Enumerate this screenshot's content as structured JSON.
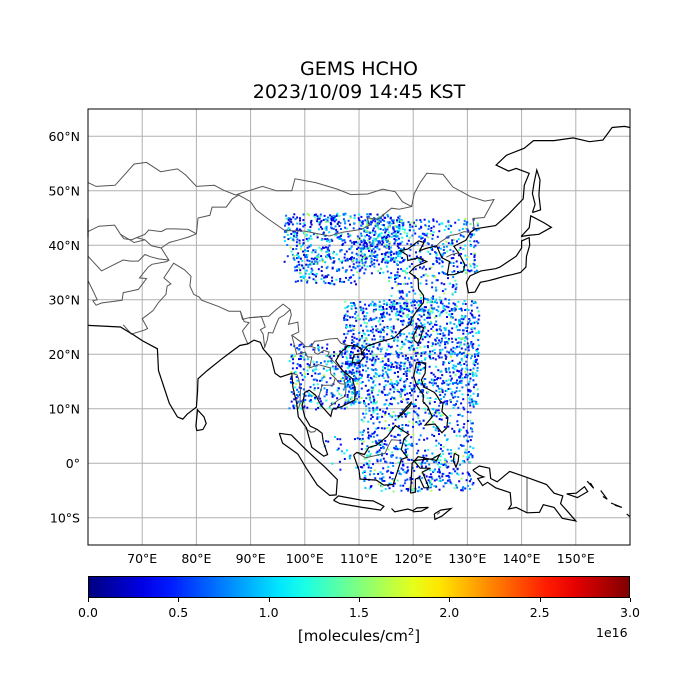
{
  "title": {
    "line1": "GEMS HCHO",
    "line2": "2023/10/09 14:45 KST"
  },
  "map": {
    "lon_range": [
      60,
      160
    ],
    "lat_range": [
      -15,
      65
    ],
    "lon_ticks": [
      "70°E",
      "80°E",
      "90°E",
      "100°E",
      "110°E",
      "120°E",
      "130°E",
      "140°E",
      "150°E"
    ],
    "lat_ticks": [
      "60°N",
      "50°N",
      "40°N",
      "30°N",
      "20°N",
      "10°N",
      "0°",
      "10°S"
    ],
    "grid": true,
    "coastline_color": "#000000",
    "border_color": "#555555"
  },
  "colorbar": {
    "colormap": "jet",
    "min": 0.0,
    "max": 3.0,
    "ticks": [
      "0.0",
      "0.5",
      "1.0",
      "1.5",
      "2.0",
      "2.5",
      "3.0"
    ],
    "exponent": "1e16",
    "label": "[molecules/cm",
    "label_sup": "2",
    "label_end": "]"
  }
}
